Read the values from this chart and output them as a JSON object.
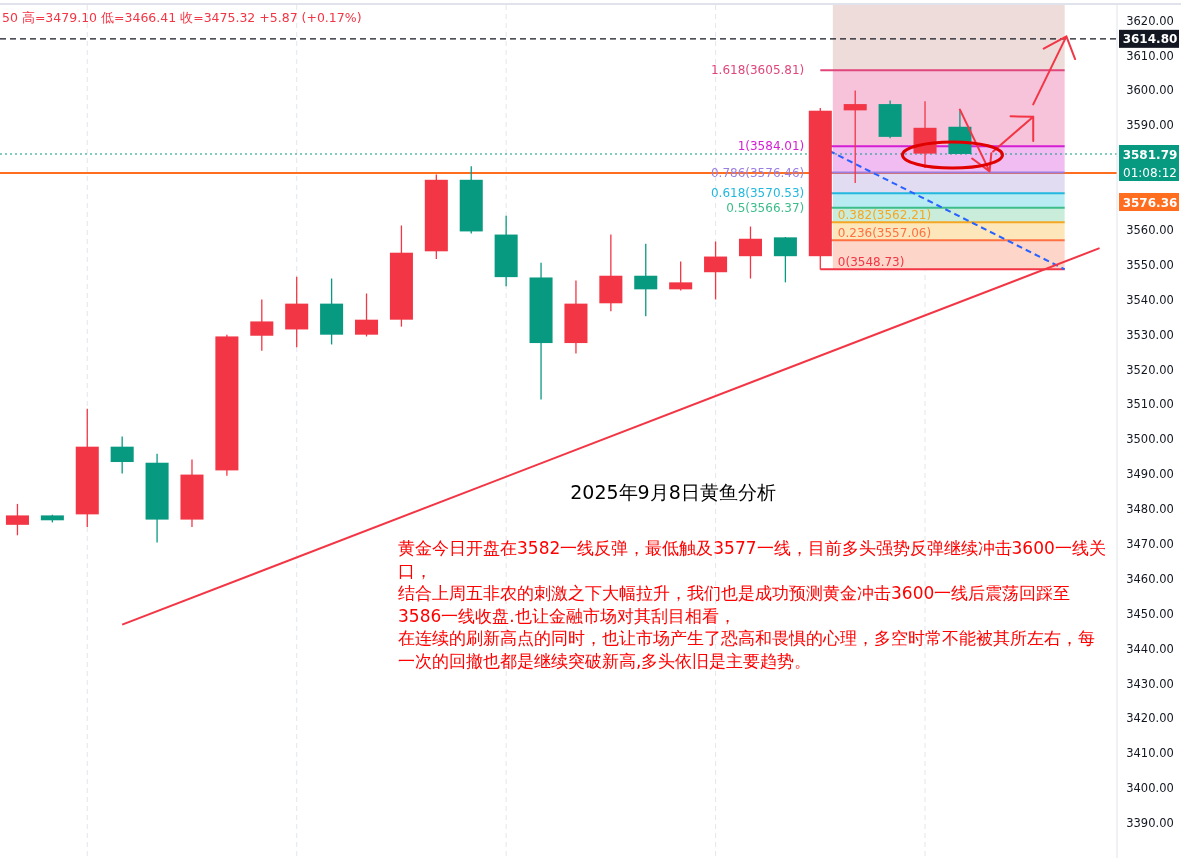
{
  "chart_data": {
    "type": "candlestick",
    "title": "2025年9月8日黄鱼分析",
    "categories": [
      null,
      null,
      null,
      null,
      null,
      null,
      null,
      null,
      null,
      null,
      null,
      null,
      null,
      null,
      null,
      null,
      null,
      null,
      null,
      null,
      null,
      null,
      null,
      null,
      null,
      null,
      null,
      null,
      null,
      null,
      null,
      null
    ],
    "ohlc": [
      [
        3475.5,
        3481.5,
        3472.5,
        3478.2
      ],
      [
        3478.2,
        3478.4,
        3476.2,
        3476.8
      ],
      [
        3478.5,
        3508.8,
        3474.9,
        3497.9
      ],
      [
        3497.9,
        3500.8,
        3490.2,
        3493.5
      ],
      [
        3493.3,
        3495.9,
        3470.4,
        3477.0
      ],
      [
        3477.0,
        3494.2,
        3474.9,
        3489.9
      ],
      [
        3491.1,
        3530.0,
        3489.6,
        3529.5
      ],
      [
        3529.7,
        3540.1,
        3525.4,
        3533.8
      ],
      [
        3531.5,
        3546.6,
        3526.4,
        3538.9
      ],
      [
        3538.9,
        3546.1,
        3527.2,
        3530.0
      ],
      [
        3530.0,
        3541.8,
        3529.5,
        3534.3
      ],
      [
        3534.3,
        3561.3,
        3532.3,
        3553.5
      ],
      [
        3553.9,
        3575.9,
        3551.7,
        3574.4
      ],
      [
        3574.4,
        3578.3,
        3559.0,
        3559.6
      ],
      [
        3558.7,
        3564.1,
        3543.9,
        3546.5
      ],
      [
        3546.4,
        3550.6,
        3511.4,
        3527.6
      ],
      [
        3527.6,
        3545.5,
        3524.6,
        3538.9
      ],
      [
        3539.0,
        3558.7,
        3536.7,
        3546.9
      ],
      [
        3546.9,
        3556.1,
        3535.3,
        3543.0
      ],
      [
        3543.0,
        3551.0,
        3542.7,
        3545.0
      ],
      [
        3547.9,
        3556.7,
        3540.1,
        3552.4
      ],
      [
        3552.5,
        3561.0,
        3546.1,
        3557.5
      ],
      [
        3557.9,
        3558.0,
        3545.0,
        3552.5
      ],
      [
        3552.5,
        3595.0,
        3548.7,
        3594.2
      ],
      [
        3594.3,
        3600.0,
        3573.5,
        3596.1
      ],
      [
        3596.1,
        3597.1,
        3586.3,
        3586.7
      ],
      [
        3581.9,
        3596.9,
        3577.8,
        3589.3
      ],
      [
        3589.6,
        3594.2,
        3581.8,
        3581.8
      ],
      null,
      null,
      null,
      null
    ],
    "colors": [
      "#f23645",
      "#089981",
      "#f23645",
      "#089981",
      "#089981",
      "#f23645",
      "#f23645",
      "#f23645",
      "#f23645",
      "#089981",
      "#f23645",
      "#f23645",
      "#f23645",
      "#089981",
      "#089981",
      "#089981",
      "#f23645",
      "#f23645",
      "#089981",
      "#f23645",
      "#f23645",
      "#f23645",
      "#089981",
      "#f23645",
      "#f23645",
      "#089981",
      "#f23645",
      "#089981",
      null,
      null,
      null,
      null
    ],
    "ylim": [
      3380,
      3624.5
    ],
    "yticks": [
      {
        "value": 3390,
        "label": "3390.00"
      },
      {
        "value": 3400,
        "label": "3400.00"
      },
      {
        "value": 3410,
        "label": "3410.00"
      },
      {
        "value": 3420,
        "label": "3420.00"
      },
      {
        "value": 3430,
        "label": "3430.00"
      },
      {
        "value": 3440,
        "label": "3440.00"
      },
      {
        "value": 3450,
        "label": "3450.00"
      },
      {
        "value": 3460,
        "label": "3460.00"
      },
      {
        "value": 3470,
        "label": "3470.00"
      },
      {
        "value": 3480,
        "label": "3480.00"
      },
      {
        "value": 3490,
        "label": "3490.00"
      },
      {
        "value": 3500,
        "label": "3500.00"
      },
      {
        "value": 3510,
        "label": "3510.00"
      },
      {
        "value": 3520,
        "label": "3520.00"
      },
      {
        "value": 3530,
        "label": "3530.00"
      },
      {
        "value": 3540,
        "label": "3540.00"
      },
      {
        "value": 3550,
        "label": "3550.00"
      },
      {
        "value": 3560,
        "label": "3560.00"
      },
      {
        "value": 3590,
        "label": "3590.00"
      },
      {
        "value": 3600,
        "label": "3600.00"
      },
      {
        "value": 3610,
        "label": "3610.00"
      },
      {
        "value": 3620,
        "label": "3620.00"
      }
    ],
    "series": [
      {
        "type": "line",
        "values": [
          null,
          null,
          null,
          3446.9,
          null,
          null,
          null,
          null,
          null,
          null,
          null,
          null,
          null,
          null,
          null,
          null,
          null,
          null,
          null,
          null,
          null,
          null,
          null,
          null,
          null,
          null,
          null,
          null,
          null,
          null,
          null,
          3554.8
        ],
        "color": "#f23645",
        "line_style": "solid"
      }
    ],
    "grid": "x",
    "bands": [
      {
        "axis": "y",
        "from": 3605.81,
        "to": 3624.5,
        "color": "#eddcd9"
      },
      {
        "axis": "y",
        "from": 3584.01,
        "to": 3605.81,
        "color": "#f7c3da"
      },
      {
        "axis": "y",
        "from": 3576.46,
        "to": 3584.01,
        "color": "#f0bcf2"
      },
      {
        "axis": "y",
        "from": 3570.53,
        "to": 3576.46,
        "color": "#e2dcf3"
      },
      {
        "axis": "y",
        "from": 3566.37,
        "to": 3570.53,
        "color": "#b9ebf3"
      },
      {
        "axis": "y",
        "from": 3562.21,
        "to": 3566.37,
        "color": "#c9edda"
      },
      {
        "axis": "y",
        "from": 3557.06,
        "to": 3562.21,
        "color": "#fde7ba"
      },
      {
        "axis": "y",
        "from": 3548.73,
        "to": 3557.06,
        "color": "#fdd6c9"
      }
    ],
    "ref_lines": [
      {
        "axis": "y",
        "value": 3614.8,
        "label": "3614.80",
        "color": "#131722",
        "line_style": "dashed"
      },
      {
        "axis": "y",
        "value": 3581.79,
        "label": "3581.79",
        "color": "#089981",
        "line_style": "dotted"
      },
      {
        "axis": "y",
        "value": 3576.36,
        "label": "3576.36",
        "color": "#ff6d1f",
        "line_style": "solid"
      },
      {
        "axis": "y",
        "value": 3605.81,
        "label": "1.618(3605.81)",
        "color": "#e0457b"
      },
      {
        "axis": "y",
        "value": 3584.01,
        "label": "1(3584.01)",
        "color": "#d41ed4"
      },
      {
        "axis": "y",
        "value": 3576.46,
        "label": "0.786(3576.46)",
        "color": "#9a7fe0"
      },
      {
        "axis": "y",
        "value": 3570.53,
        "label": "0.618(3570.53)",
        "color": "#22b8de"
      },
      {
        "axis": "y",
        "value": 3566.37,
        "label": "0.5(3566.37)",
        "color": "#3dbd8a"
      },
      {
        "axis": "y",
        "value": 3562.21,
        "label": "0.382(3562.21)",
        "color": "#f5a623"
      },
      {
        "axis": "y",
        "value": 3557.06,
        "label": "0.236(3557.06)",
        "color": "#ff7043"
      },
      {
        "axis": "y",
        "value": 3548.73,
        "label": "0(3548.73)",
        "color": "#f23645"
      }
    ],
    "annotations": [
      "50 高=3479.10 低=3466.41 收=3475.32 +5.87 (+0.17%)",
      "01:08:12",
      "黄金今日开盘在3582一线反弹，最低触及3577一线，目前多头强势反弹继续冲击3600一线关口，",
      "结合上周五非农的刺激之下大幅拉升，我们也是成功预测黄金冲击3600一线后震荡回踩至3586一线收盘.也让金融市场对其刮目相看，",
      "在连续的刷新高点的同时，也让市场产生了恐高和畏惧的心理，多空时常不能被其所左右，每一次的回撤也都是继续突破新高,多头依旧是主要趋势。"
    ]
  }
}
